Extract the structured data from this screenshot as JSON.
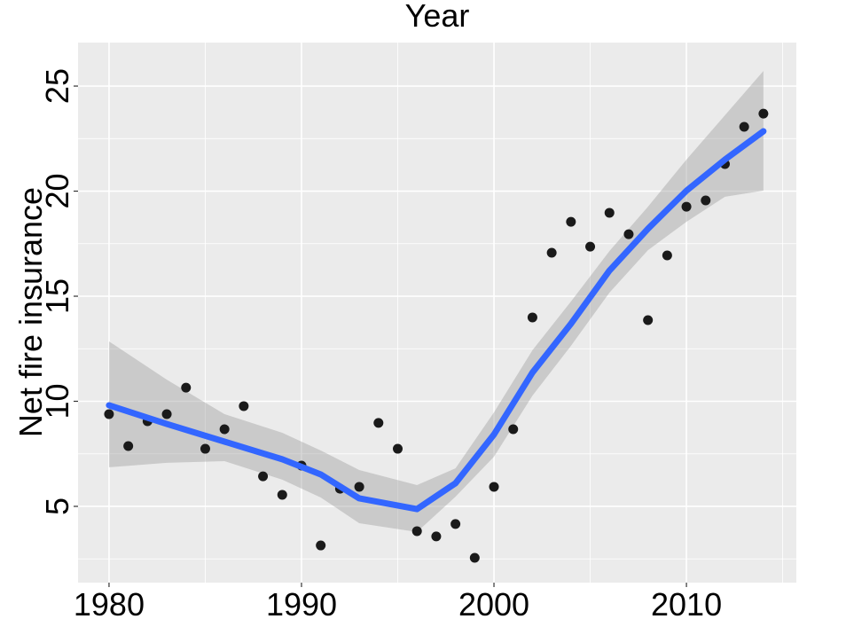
{
  "chart_data": {
    "type": "scatter",
    "title": "Year",
    "y_label": "Net fire insurance",
    "x": [
      1980,
      1981,
      1982,
      1983,
      1984,
      1985,
      1986,
      1987,
      1988,
      1989,
      1990,
      1991,
      1992,
      1993,
      1994,
      1995,
      1996,
      1997,
      1998,
      1999,
      2000,
      2001,
      2002,
      2003,
      2004,
      2005,
      2006,
      2007,
      2008,
      2009,
      2010,
      2011,
      2012,
      2013,
      2014
    ],
    "values": [
      9.39,
      7.87,
      9.05,
      9.39,
      10.65,
      7.74,
      8.67,
      9.77,
      6.43,
      5.55,
      6.94,
      3.14,
      5.84,
      5.93,
      8.97,
      7.74,
      3.82,
      3.57,
      4.16,
      2.55,
      5.93,
      8.67,
      13.99,
      17.07,
      18.54,
      17.36,
      18.97,
      17.95,
      13.86,
      16.94,
      19.26,
      19.56,
      21.29,
      23.06,
      23.69
    ],
    "color": "#1a1a1a",
    "smooth": {
      "color": "#3366ff",
      "band_color": "#999999",
      "x": [
        1980,
        1983,
        1986,
        1989,
        1991,
        1993,
        1996,
        1998,
        2000,
        2002,
        2004,
        2006,
        2008,
        2010,
        2012,
        2014
      ],
      "values": [
        9.81,
        8.92,
        8.08,
        7.24,
        6.52,
        5.38,
        4.87,
        6.1,
        8.42,
        11.37,
        13.69,
        16.22,
        18.21,
        20.02,
        21.5,
        22.85
      ],
      "upper": [
        12.85,
        11.03,
        9.39,
        8.5,
        7.66,
        6.73,
        6.01,
        6.81,
        9.47,
        12.43,
        14.75,
        17.15,
        19.26,
        21.5,
        23.61,
        25.72
      ],
      "lower": [
        6.86,
        7.07,
        7.15,
        6.27,
        5.42,
        4.2,
        3.78,
        5.46,
        7.36,
        10.27,
        12.64,
        15.17,
        17.19,
        18.54,
        19.73,
        20.02
      ]
    },
    "xlim": [
      1978.39,
      2015.71
    ],
    "ylim": [
      1.37,
      27.07
    ],
    "xticks": [
      1980,
      1990,
      2000,
      2010
    ],
    "yticks": [
      5,
      10,
      15,
      20,
      25
    ],
    "grid": true
  }
}
